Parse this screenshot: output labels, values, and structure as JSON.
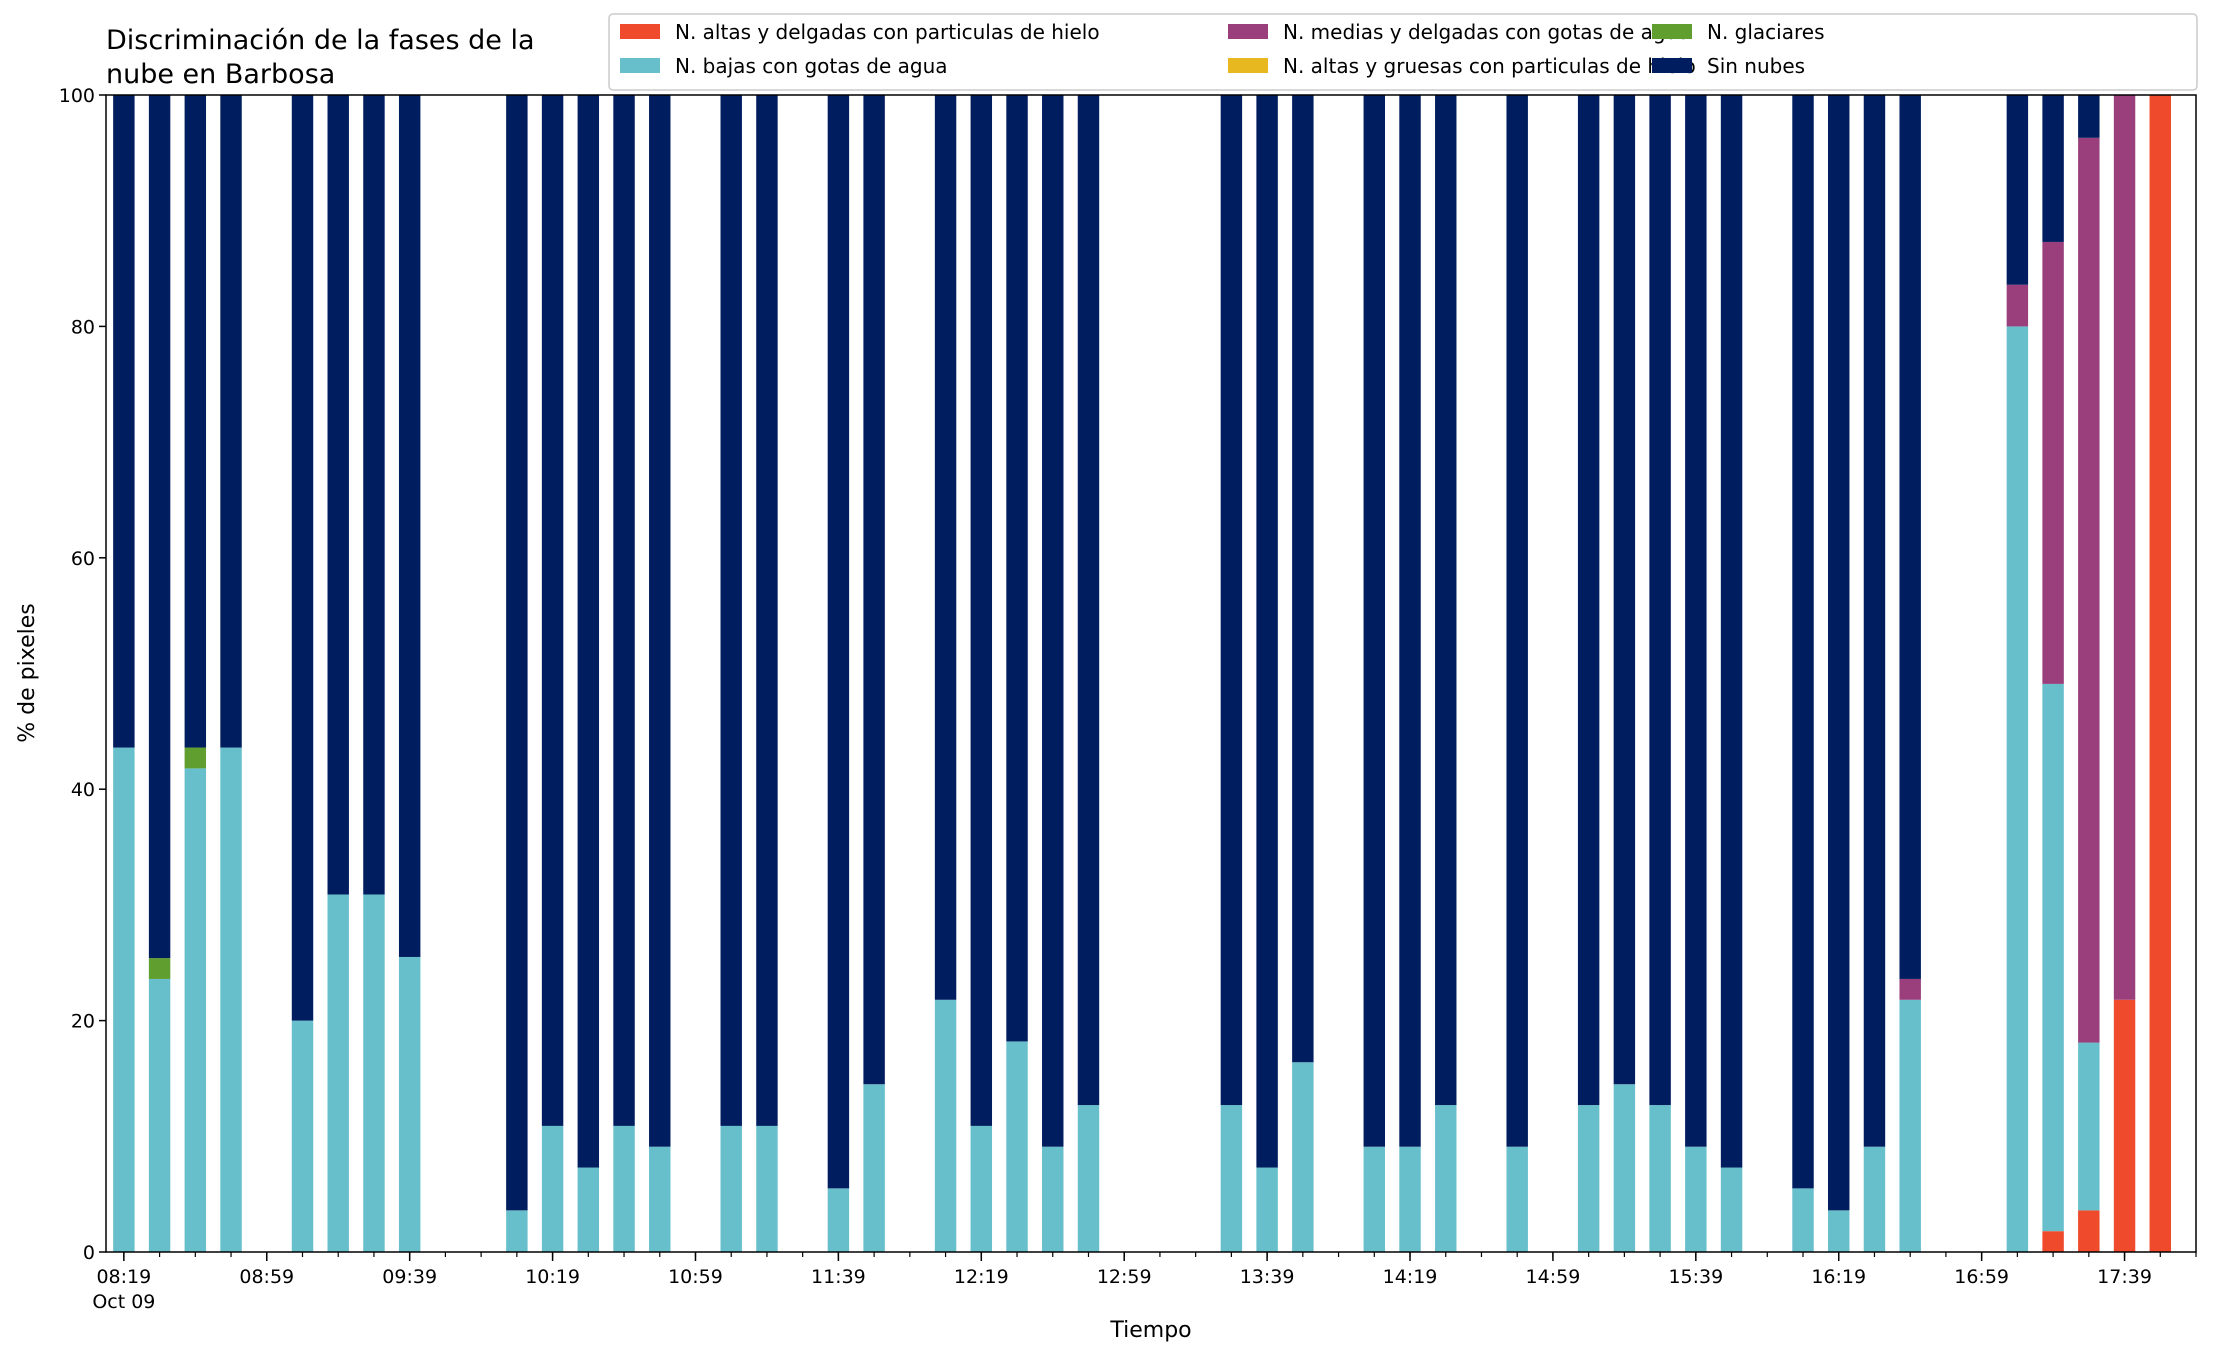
{
  "chart_data": {
    "type": "bar",
    "stacked": true,
    "title_lines": [
      "Discriminación de la fases de la",
      "nube en Barbosa"
    ],
    "xlabel": "Tiempo",
    "ylabel": "% de pixeles",
    "ylim": [
      0,
      100
    ],
    "yticks": [
      0,
      20,
      40,
      60,
      80,
      100
    ],
    "xlim": [
      "08:14",
      "17:59"
    ],
    "date_label": "Oct 09",
    "xtick_labels": [
      "08:19",
      "08:59",
      "09:39",
      "10:19",
      "10:59",
      "11:39",
      "12:19",
      "12:59",
      "13:39",
      "14:19",
      "14:59",
      "15:39",
      "16:19",
      "16:59",
      "17:39"
    ],
    "minor_ticks_every_minutes": 10,
    "legend_position": "top-right",
    "series": [
      {
        "name": "N. altas y delgadas con particulas de hielo",
        "color": "#ef4a2c"
      },
      {
        "name": "N. altas y gruesas con particulas de hielo",
        "color": "#e8b820"
      },
      {
        "name": "N. bajas con gotas de agua",
        "color": "#67bfcc"
      },
      {
        "name": "N. glaciares",
        "color": "#5f9e2f"
      },
      {
        "name": "N. medias y delgadas con gotas de agua",
        "color": "#9b3f7c"
      },
      {
        "name": "Sin nubes",
        "color": "#001e5f"
      }
    ],
    "legend_order": [
      0,
      2,
      4,
      1,
      3,
      5
    ],
    "bars": [
      {
        "time": "08:19",
        "values": [
          0,
          0,
          43.6,
          0,
          0,
          56.4
        ]
      },
      {
        "time": "08:29",
        "values": [
          0,
          0,
          23.6,
          1.8,
          0,
          74.6
        ]
      },
      {
        "time": "08:39",
        "values": [
          0,
          0,
          41.8,
          1.8,
          0,
          56.4
        ]
      },
      {
        "time": "08:49",
        "values": [
          0,
          0,
          43.6,
          0,
          0,
          56.4
        ]
      },
      {
        "time": "09:09",
        "values": [
          0,
          0,
          20.0,
          0,
          0,
          80.0
        ]
      },
      {
        "time": "09:19",
        "values": [
          0,
          0,
          30.9,
          0,
          0,
          69.1
        ]
      },
      {
        "time": "09:29",
        "values": [
          0,
          0,
          30.9,
          0,
          0,
          69.1
        ]
      },
      {
        "time": "09:39",
        "values": [
          0,
          0,
          25.5,
          0,
          0,
          74.5
        ]
      },
      {
        "time": "10:09",
        "values": [
          0,
          0,
          3.6,
          0,
          0,
          96.4
        ]
      },
      {
        "time": "10:19",
        "values": [
          0,
          0,
          10.9,
          0,
          0,
          89.1
        ]
      },
      {
        "time": "10:29",
        "values": [
          0,
          0,
          7.3,
          0,
          0,
          92.7
        ]
      },
      {
        "time": "10:39",
        "values": [
          0,
          0,
          10.9,
          0,
          0,
          89.1
        ]
      },
      {
        "time": "10:49",
        "values": [
          0,
          0,
          9.1,
          0,
          0,
          90.9
        ]
      },
      {
        "time": "11:09",
        "values": [
          0,
          0,
          10.9,
          0,
          0,
          89.1
        ]
      },
      {
        "time": "11:19",
        "values": [
          0,
          0,
          10.9,
          0,
          0,
          89.1
        ]
      },
      {
        "time": "11:39",
        "values": [
          0,
          0,
          5.5,
          0,
          0,
          94.5
        ]
      },
      {
        "time": "11:49",
        "values": [
          0,
          0,
          14.5,
          0,
          0,
          85.5
        ]
      },
      {
        "time": "12:09",
        "values": [
          0,
          0,
          21.8,
          0,
          0,
          78.2
        ]
      },
      {
        "time": "12:19",
        "values": [
          0,
          0,
          10.9,
          0,
          0,
          89.1
        ]
      },
      {
        "time": "12:29",
        "values": [
          0,
          0,
          18.2,
          0,
          0,
          81.8
        ]
      },
      {
        "time": "12:39",
        "values": [
          0,
          0,
          9.1,
          0,
          0,
          90.9
        ]
      },
      {
        "time": "12:49",
        "values": [
          0,
          0,
          12.7,
          0,
          0,
          87.3
        ]
      },
      {
        "time": "13:29",
        "values": [
          0,
          0,
          12.7,
          0,
          0,
          87.3
        ]
      },
      {
        "time": "13:39",
        "values": [
          0,
          0,
          7.3,
          0,
          0,
          92.7
        ]
      },
      {
        "time": "13:49",
        "values": [
          0,
          0,
          16.4,
          0,
          0,
          83.6
        ]
      },
      {
        "time": "14:09",
        "values": [
          0,
          0,
          9.1,
          0,
          0,
          90.9
        ]
      },
      {
        "time": "14:19",
        "values": [
          0,
          0,
          9.1,
          0,
          0,
          90.9
        ]
      },
      {
        "time": "14:29",
        "values": [
          0,
          0,
          12.7,
          0,
          0,
          87.3
        ]
      },
      {
        "time": "14:49",
        "values": [
          0,
          0,
          9.1,
          0,
          0,
          90.9
        ]
      },
      {
        "time": "15:09",
        "values": [
          0,
          0,
          12.7,
          0,
          0,
          87.3
        ]
      },
      {
        "time": "15:19",
        "values": [
          0,
          0,
          14.5,
          0,
          0,
          85.5
        ]
      },
      {
        "time": "15:29",
        "values": [
          0,
          0,
          12.7,
          0,
          0,
          87.3
        ]
      },
      {
        "time": "15:39",
        "values": [
          0,
          0,
          9.1,
          0,
          0,
          90.9
        ]
      },
      {
        "time": "15:49",
        "values": [
          0,
          0,
          7.3,
          0,
          0,
          92.7
        ]
      },
      {
        "time": "16:09",
        "values": [
          0,
          0,
          5.5,
          0,
          0,
          94.5
        ]
      },
      {
        "time": "16:19",
        "values": [
          0,
          0,
          3.6,
          0,
          0,
          96.4
        ]
      },
      {
        "time": "16:29",
        "values": [
          0,
          0,
          9.1,
          0,
          0,
          90.9
        ]
      },
      {
        "time": "16:39",
        "values": [
          0,
          0,
          21.8,
          0,
          1.8,
          76.4
        ]
      },
      {
        "time": "17:09",
        "values": [
          0,
          0,
          80.0,
          0,
          3.6,
          16.4
        ]
      },
      {
        "time": "17:19",
        "values": [
          1.8,
          0,
          47.3,
          0,
          38.2,
          12.7
        ]
      },
      {
        "time": "17:29",
        "values": [
          3.6,
          0,
          14.5,
          0,
          78.2,
          3.7
        ]
      },
      {
        "time": "17:39",
        "values": [
          21.8,
          0,
          0,
          0,
          78.2,
          0
        ]
      },
      {
        "time": "17:49",
        "values": [
          100,
          0,
          0,
          0,
          0,
          0
        ]
      }
    ]
  }
}
